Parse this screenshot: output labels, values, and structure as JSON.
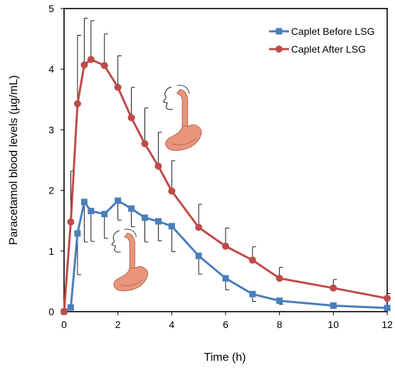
{
  "chart_data": {
    "type": "line",
    "xlabel": "Time (h)",
    "ylabel": "Paracetamol blood levels (µg/mL)",
    "xlim": [
      0,
      12
    ],
    "ylim": [
      0,
      5
    ],
    "xticks": [
      0,
      2,
      4,
      6,
      8,
      10,
      12
    ],
    "yticks": [
      0,
      1,
      2,
      3,
      4,
      5
    ],
    "grid": false,
    "legend_position": "top-right",
    "series": [
      {
        "name": "Caplet Before LSG",
        "color": "#4a7ebb",
        "marker": "square",
        "error_direction": "down",
        "points": [
          {
            "x": 0,
            "y": 0,
            "err": 0
          },
          {
            "x": 0.25,
            "y": 0.07,
            "err": 0
          },
          {
            "x": 0.5,
            "y": 1.29,
            "err": 0.68
          },
          {
            "x": 0.75,
            "y": 1.81,
            "err": 0.66
          },
          {
            "x": 1,
            "y": 1.66,
            "err": 0.5
          },
          {
            "x": 1.5,
            "y": 1.61,
            "err": 0.4
          },
          {
            "x": 2,
            "y": 1.83,
            "err": 0.32
          },
          {
            "x": 2.5,
            "y": 1.7,
            "err": 0.3
          },
          {
            "x": 3,
            "y": 1.55,
            "err": 0.4
          },
          {
            "x": 3.5,
            "y": 1.49,
            "err": 0.32
          },
          {
            "x": 4,
            "y": 1.41,
            "err": 0.42
          },
          {
            "x": 5,
            "y": 0.92,
            "err": 0.3
          },
          {
            "x": 6,
            "y": 0.55,
            "err": 0.19
          },
          {
            "x": 7,
            "y": 0.29,
            "err": 0.12
          },
          {
            "x": 8,
            "y": 0.18,
            "err": 0.06
          },
          {
            "x": 10,
            "y": 0.1,
            "err": 0.03
          },
          {
            "x": 12,
            "y": 0.06,
            "err": 0.02
          }
        ]
      },
      {
        "name": "Caplet After LSG",
        "color": "#be4b48",
        "marker": "circle",
        "error_direction": "up",
        "points": [
          {
            "x": 0,
            "y": 0,
            "err": 0
          },
          {
            "x": 0.25,
            "y": 1.48,
            "err": 0.84
          },
          {
            "x": 0.5,
            "y": 3.43,
            "err": 1.13
          },
          {
            "x": 0.75,
            "y": 4.07,
            "err": 0.77
          },
          {
            "x": 1,
            "y": 4.16,
            "err": 0.64
          },
          {
            "x": 1.5,
            "y": 4.06,
            "err": 0.52
          },
          {
            "x": 2,
            "y": 3.7,
            "err": 0.52
          },
          {
            "x": 2.5,
            "y": 3.2,
            "err": 0.5
          },
          {
            "x": 3,
            "y": 2.77,
            "err": 0.59
          },
          {
            "x": 3.5,
            "y": 2.4,
            "err": 0.56
          },
          {
            "x": 4,
            "y": 1.99,
            "err": 0.5
          },
          {
            "x": 5,
            "y": 1.39,
            "err": 0.38
          },
          {
            "x": 6,
            "y": 1.08,
            "err": 0.3
          },
          {
            "x": 7,
            "y": 0.85,
            "err": 0.22
          },
          {
            "x": 8,
            "y": 0.55,
            "err": 0.18
          },
          {
            "x": 10,
            "y": 0.39,
            "err": 0.14
          },
          {
            "x": 12,
            "y": 0.22,
            "err": 0.08
          }
        ]
      }
    ]
  },
  "illustrations": [
    {
      "name": "stomach-after-lsg-illustration",
      "color": "#e8957a"
    },
    {
      "name": "stomach-before-lsg-illustration",
      "color": "#e8957a"
    }
  ]
}
